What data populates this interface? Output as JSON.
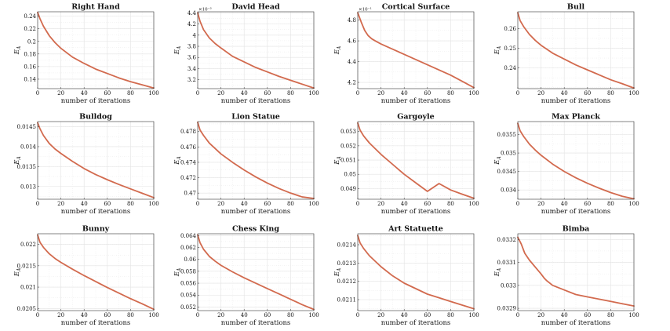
{
  "chart_data": [
    {
      "type": "line",
      "title": "Right Hand",
      "xlabel": "number of iterations",
      "ylabel": "E",
      "ylabel_sub": "A",
      "xlim": [
        0,
        100
      ],
      "ylim": [
        0.125,
        0.247
      ],
      "xticks": [
        0,
        20,
        40,
        60,
        80,
        100
      ],
      "yticks": [
        0.14,
        0.16,
        0.18,
        0.2,
        0.22,
        0.24
      ],
      "ytick_labels": [
        "0.14",
        "0.16",
        "0.18",
        "0.2",
        "0.22",
        "0.24"
      ],
      "exponent": "",
      "series": [
        {
          "name": "E_A",
          "x": [
            0,
            2,
            5,
            10,
            15,
            20,
            30,
            40,
            50,
            60,
            70,
            80,
            90,
            100
          ],
          "y": [
            0.246,
            0.236,
            0.224,
            0.209,
            0.198,
            0.189,
            0.175,
            0.165,
            0.156,
            0.149,
            0.142,
            0.136,
            0.131,
            0.126
          ]
        }
      ]
    },
    {
      "type": "line",
      "title": "David Head",
      "xlabel": "number of iterations",
      "ylabel": "E",
      "ylabel_sub": "A",
      "xlim": [
        0,
        100
      ],
      "ylim": [
        3.04,
        4.42
      ],
      "xticks": [
        0,
        20,
        40,
        60,
        80,
        100
      ],
      "yticks": [
        3.2,
        3.4,
        3.6,
        3.8,
        4.0,
        4.2,
        4.4
      ],
      "ytick_labels": [
        "3.2",
        "3.4",
        "3.6",
        "3.8",
        "4",
        "4.2",
        "4.4"
      ],
      "exponent": "×10⁻³",
      "series": [
        {
          "name": "E_A",
          "x": [
            0,
            2,
            5,
            10,
            15,
            20,
            30,
            40,
            50,
            60,
            70,
            80,
            90,
            100
          ],
          "y": [
            4.4,
            4.25,
            4.1,
            3.95,
            3.85,
            3.77,
            3.62,
            3.52,
            3.42,
            3.34,
            3.26,
            3.19,
            3.12,
            3.05
          ]
        }
      ]
    },
    {
      "type": "line",
      "title": "Cortical Surface",
      "xlabel": "number of iterations",
      "ylabel": "E",
      "ylabel_sub": "A",
      "xlim": [
        0,
        100
      ],
      "ylim": [
        4.14,
        4.88
      ],
      "xticks": [
        0,
        20,
        40,
        60,
        80,
        100
      ],
      "yticks": [
        4.2,
        4.4,
        4.6,
        4.8
      ],
      "ytick_labels": [
        "4.2",
        "4.4",
        "4.6",
        "4.8"
      ],
      "exponent": "×10⁻¹",
      "series": [
        {
          "name": "E_A",
          "x": [
            0,
            3,
            6,
            9,
            12,
            15,
            20,
            30,
            40,
            50,
            60,
            70,
            80,
            90,
            100
          ],
          "y": [
            4.87,
            4.78,
            4.7,
            4.65,
            4.62,
            4.6,
            4.57,
            4.52,
            4.47,
            4.42,
            4.37,
            4.32,
            4.27,
            4.21,
            4.15
          ]
        }
      ]
    },
    {
      "type": "line",
      "title": "Bull",
      "xlabel": "number of iterations",
      "ylabel": "E",
      "ylabel_sub": "A",
      "xlim": [
        0,
        100
      ],
      "ylim": [
        0.2295,
        0.2685
      ],
      "xticks": [
        0,
        20,
        40,
        60,
        80,
        100
      ],
      "yticks": [
        0.24,
        0.25,
        0.26
      ],
      "ytick_labels": [
        "0.24",
        "0.25",
        "0.26"
      ],
      "exponent": "",
      "series": [
        {
          "name": "E_A",
          "x": [
            0,
            2,
            5,
            10,
            15,
            20,
            30,
            40,
            50,
            60,
            70,
            80,
            90,
            100
          ],
          "y": [
            0.268,
            0.264,
            0.261,
            0.257,
            0.254,
            0.2515,
            0.2475,
            0.2445,
            0.2415,
            0.239,
            0.2365,
            0.234,
            0.232,
            0.2298
          ]
        }
      ]
    },
    {
      "type": "line",
      "title": "Bulldog",
      "xlabel": "number of iterations",
      "ylabel": "E",
      "ylabel_sub": "A",
      "xlim": [
        0,
        100
      ],
      "ylim": [
        0.01268,
        0.01463
      ],
      "xticks": [
        0,
        20,
        40,
        60,
        80,
        100
      ],
      "yticks": [
        0.013,
        0.0135,
        0.014,
        0.0145
      ],
      "ytick_labels": [
        "0.013",
        "0.0135",
        "0.014",
        "0.0145"
      ],
      "exponent": "",
      "series": [
        {
          "name": "E_A",
          "x": [
            0,
            2,
            5,
            10,
            15,
            20,
            30,
            40,
            50,
            60,
            70,
            80,
            90,
            100
          ],
          "y": [
            0.0146,
            0.01445,
            0.01428,
            0.01408,
            0.01394,
            0.01383,
            0.01363,
            0.01345,
            0.0133,
            0.01317,
            0.01305,
            0.01294,
            0.01283,
            0.01272
          ]
        }
      ]
    },
    {
      "type": "line",
      "title": "Lion Statue",
      "xlabel": "number of iterations",
      "ylabel": "E",
      "ylabel_sub": "A",
      "xlim": [
        0,
        100
      ],
      "ylim": [
        0.4692,
        0.4793
      ],
      "xticks": [
        0,
        20,
        40,
        60,
        80,
        100
      ],
      "yticks": [
        0.47,
        0.472,
        0.474,
        0.476,
        0.478
      ],
      "ytick_labels": [
        "0.47",
        "0.472",
        "0.474",
        "0.476",
        "0.478"
      ],
      "exponent": "",
      "series": [
        {
          "name": "E_A",
          "x": [
            0,
            2,
            5,
            10,
            15,
            20,
            30,
            40,
            50,
            60,
            70,
            80,
            90,
            100
          ],
          "y": [
            0.4792,
            0.4782,
            0.4775,
            0.4765,
            0.4758,
            0.4751,
            0.474,
            0.473,
            0.4721,
            0.4713,
            0.4706,
            0.47,
            0.4695,
            0.4693
          ]
        }
      ]
    },
    {
      "type": "line",
      "title": "Gargoyle",
      "xlabel": "number of iterations",
      "ylabel": "E",
      "ylabel_sub": "A",
      "xlim": [
        0,
        100
      ],
      "ylim": [
        0.04825,
        0.0537
      ],
      "xticks": [
        0,
        20,
        40,
        60,
        80,
        100
      ],
      "yticks": [
        0.049,
        0.05,
        0.051,
        0.052,
        0.053
      ],
      "ytick_labels": [
        "0.049",
        "0.05",
        "0.051",
        "0.052",
        "0.053"
      ],
      "exponent": "",
      "series": [
        {
          "name": "E_A",
          "x": [
            0,
            2,
            5,
            10,
            15,
            20,
            30,
            40,
            50,
            60,
            70,
            80,
            90,
            100
          ],
          "y": [
            0.0536,
            0.0531,
            0.0527,
            0.0522,
            0.0518,
            0.0514,
            0.0507,
            0.05,
            0.0494,
            0.0488,
            0.04935,
            0.0489,
            0.0486,
            0.04832
          ]
        }
      ]
    },
    {
      "type": "line",
      "title": "Max Planck",
      "xlabel": "number of iterations",
      "ylabel": "E",
      "ylabel_sub": "A",
      "xlim": [
        0,
        100
      ],
      "ylim": [
        0.03375,
        0.03585
      ],
      "xticks": [
        0,
        20,
        40,
        60,
        80,
        100
      ],
      "yticks": [
        0.034,
        0.0345,
        0.035,
        0.0355
      ],
      "ytick_labels": [
        "0.034",
        "0.0345",
        "0.035",
        "0.0355"
      ],
      "exponent": "",
      "series": [
        {
          "name": "E_A",
          "x": [
            0,
            2,
            5,
            10,
            15,
            20,
            30,
            40,
            50,
            60,
            70,
            80,
            90,
            100
          ],
          "y": [
            0.0358,
            0.0356,
            0.03545,
            0.03524,
            0.03508,
            0.03494,
            0.0347,
            0.0345,
            0.03433,
            0.03418,
            0.03405,
            0.03393,
            0.03383,
            0.03376
          ]
        }
      ]
    },
    {
      "type": "line",
      "title": "Bunny",
      "xlabel": "number of iterations",
      "ylabel": "E",
      "ylabel_sub": "A",
      "xlim": [
        0,
        100
      ],
      "ylim": [
        0.02045,
        0.02225
      ],
      "xticks": [
        0,
        20,
        40,
        60,
        80,
        100
      ],
      "yticks": [
        0.0205,
        0.021,
        0.0215,
        0.022
      ],
      "ytick_labels": [
        "0.0205",
        "0.021",
        "0.0215",
        "0.022"
      ],
      "exponent": "",
      "series": [
        {
          "name": "E_A",
          "x": [
            0,
            2,
            5,
            10,
            15,
            20,
            30,
            40,
            50,
            60,
            70,
            80,
            90,
            100
          ],
          "y": [
            0.02222,
            0.02205,
            0.02193,
            0.02178,
            0.02167,
            0.02158,
            0.02142,
            0.02127,
            0.02113,
            0.02099,
            0.02086,
            0.02073,
            0.02061,
            0.02048
          ]
        }
      ]
    },
    {
      "type": "line",
      "title": "Chess King",
      "xlabel": "number of iterations",
      "ylabel": "E",
      "ylabel_sub": "A",
      "xlim": [
        0,
        100
      ],
      "ylim": [
        0.0514,
        0.0643
      ],
      "xticks": [
        0,
        20,
        40,
        60,
        80,
        100
      ],
      "yticks": [
        0.052,
        0.054,
        0.056,
        0.058,
        0.06,
        0.062,
        0.064
      ],
      "ytick_labels": [
        "0.052",
        "0.054",
        "0.056",
        "0.058",
        "0.06",
        "0.062",
        "0.064"
      ],
      "exponent": "",
      "series": [
        {
          "name": "E_A",
          "x": [
            0,
            2,
            5,
            10,
            15,
            20,
            30,
            40,
            50,
            60,
            70,
            80,
            90,
            100
          ],
          "y": [
            0.0641,
            0.0628,
            0.0617,
            0.0605,
            0.0597,
            0.059,
            0.0579,
            0.0569,
            0.056,
            0.0551,
            0.0542,
            0.0533,
            0.0524,
            0.0516
          ]
        }
      ]
    },
    {
      "type": "line",
      "title": "Art Statuette",
      "xlabel": "number of iterations",
      "ylabel": "E",
      "ylabel_sub": "A",
      "xlim": [
        0,
        100
      ],
      "ylim": [
        0.02104,
        0.02146
      ],
      "xticks": [
        0,
        20,
        40,
        60,
        80,
        100
      ],
      "yticks": [
        0.0211,
        0.0212,
        0.0213,
        0.0214
      ],
      "ytick_labels": [
        "0.0211",
        "0.0212",
        "0.0213",
        "0.0214"
      ],
      "exponent": "",
      "series": [
        {
          "name": "E_A",
          "x": [
            0,
            2,
            5,
            10,
            15,
            20,
            30,
            40,
            50,
            60,
            70,
            80,
            90,
            100
          ],
          "y": [
            0.02145,
            0.02141,
            0.02138,
            0.02134,
            0.02131,
            0.02128,
            0.02123,
            0.02119,
            0.02116,
            0.02113,
            0.02111,
            0.02109,
            0.02107,
            0.02105
          ]
        }
      ]
    },
    {
      "type": "line",
      "title": "Bimba",
      "xlabel": "number of iterations",
      "ylabel": "E",
      "ylabel_sub": "A",
      "xlim": [
        0,
        100
      ],
      "ylim": [
        0.03289,
        0.033225
      ],
      "xticks": [
        0,
        20,
        40,
        60,
        80,
        100
      ],
      "yticks": [
        0.0329,
        0.033,
        0.0331,
        0.0332
      ],
      "ytick_labels": [
        "0.0329",
        "0.033",
        "0.0331",
        "0.0332"
      ],
      "exponent": "",
      "series": [
        {
          "name": "E_A",
          "x": [
            0,
            3,
            6,
            10,
            15,
            20,
            23,
            25,
            30,
            40,
            50,
            60,
            70,
            80,
            90,
            100
          ],
          "y": [
            0.03321,
            0.03318,
            0.03314,
            0.03311,
            0.03308,
            0.03305,
            0.03303,
            0.03302,
            0.033,
            0.03298,
            0.03296,
            0.03295,
            0.03294,
            0.03293,
            0.03292,
            0.03291
          ]
        }
      ]
    }
  ],
  "colors": {
    "line": "#d26a4e",
    "grid": "#e3e3e3",
    "axis": "#333333"
  }
}
